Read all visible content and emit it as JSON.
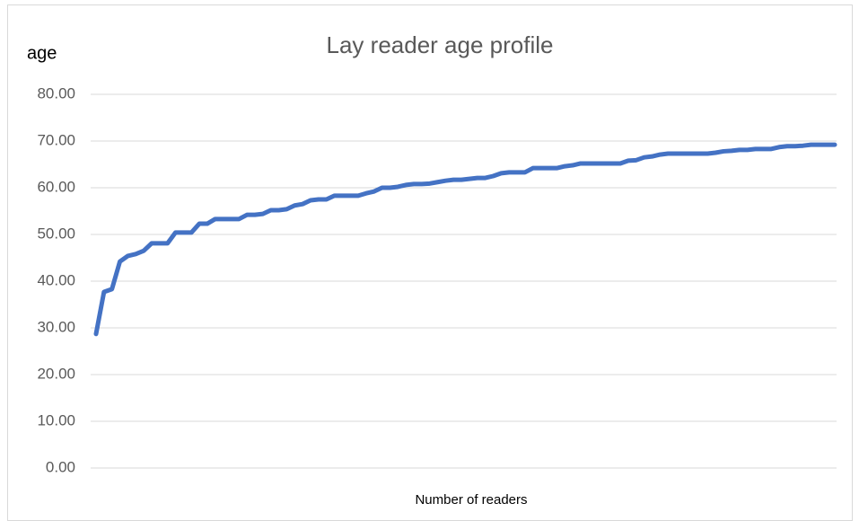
{
  "chart_data": {
    "type": "line",
    "title": "Lay reader age profile",
    "y_label": "age",
    "x_label": "Number of readers",
    "categories": [
      null,
      null,
      null,
      null,
      null,
      null,
      null,
      null,
      null,
      null,
      null,
      null,
      null,
      null,
      null,
      null,
      null,
      null,
      null,
      null,
      null,
      null,
      null,
      null,
      null,
      null,
      null,
      null,
      null,
      null,
      null,
      null,
      null,
      null,
      null,
      null,
      null,
      null,
      null,
      null,
      null,
      null,
      null,
      null,
      null,
      null,
      null,
      null,
      null,
      null,
      null,
      null,
      null,
      null,
      null,
      null,
      null,
      null,
      null,
      null,
      null,
      null,
      null,
      null,
      null,
      null,
      null,
      null,
      null,
      null,
      null,
      null,
      null,
      null,
      null,
      null,
      null,
      null,
      null,
      null,
      null,
      null,
      null,
      null,
      null,
      null,
      null,
      null,
      null,
      null,
      null,
      null,
      null,
      null
    ],
    "series": [
      {
        "name": "age",
        "color": "#4472c4",
        "values": [
          28.7,
          37.7,
          38.3,
          44.2,
          45.4,
          45.8,
          46.5,
          48.1,
          48.1,
          48.1,
          50.4,
          50.4,
          50.4,
          52.3,
          52.3,
          53.3,
          53.3,
          53.3,
          53.3,
          54.2,
          54.2,
          54.4,
          55.2,
          55.2,
          55.4,
          56.2,
          56.5,
          57.3,
          57.5,
          57.5,
          58.3,
          58.3,
          58.3,
          58.3,
          58.8,
          59.2,
          60.0,
          60.0,
          60.2,
          60.6,
          60.8,
          60.8,
          60.9,
          61.2,
          61.5,
          61.7,
          61.7,
          61.9,
          62.1,
          62.1,
          62.5,
          63.1,
          63.3,
          63.3,
          63.3,
          64.2,
          64.2,
          64.2,
          64.2,
          64.6,
          64.8,
          65.2,
          65.2,
          65.2,
          65.2,
          65.2,
          65.2,
          65.8,
          65.9,
          66.5,
          66.7,
          67.1,
          67.3,
          67.3,
          67.3,
          67.3,
          67.3,
          67.3,
          67.5,
          67.8,
          67.9,
          68.1,
          68.1,
          68.3,
          68.3,
          68.3,
          68.7,
          68.9,
          68.9,
          69.0,
          69.2,
          69.2,
          69.2,
          69.2
        ]
      }
    ],
    "ylim": [
      0,
      80
    ],
    "yticks": [
      {
        "value": 0,
        "label": "0.00"
      },
      {
        "value": 10,
        "label": "10.00"
      },
      {
        "value": 20,
        "label": "20.00"
      },
      {
        "value": 30,
        "label": "30.00"
      },
      {
        "value": 40,
        "label": "40.00"
      },
      {
        "value": 50,
        "label": "50.00"
      },
      {
        "value": 60,
        "label": "60.00"
      },
      {
        "value": 70,
        "label": "70.00"
      },
      {
        "value": 80,
        "label": "80.00"
      }
    ],
    "grid": true
  }
}
